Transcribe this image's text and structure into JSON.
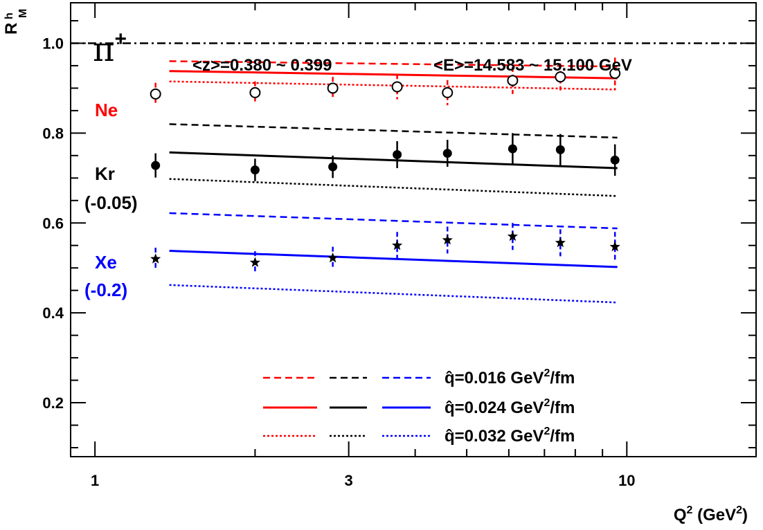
{
  "chart_data": {
    "type": "scatter",
    "x_scale": "log",
    "xlim": [
      0.9,
      17.5
    ],
    "ylim": [
      0.08,
      1.09
    ],
    "x_ticks": [
      1,
      3,
      10
    ],
    "x_tick_labels": [
      "1",
      "3",
      "10"
    ],
    "y_ticks": [
      0.2,
      0.4,
      0.6,
      0.8,
      1.0
    ],
    "y_tick_labels": [
      "0.2",
      "0.4",
      "0.6",
      "0.8",
      "1.0"
    ],
    "ylabel": {
      "main": "R",
      "sup": "h",
      "sub": "M"
    },
    "xlabel": {
      "pre": "Q",
      "sup1": "2",
      "mid": " (GeV",
      "sup2": "2",
      "post": ")"
    },
    "particle": {
      "base": "π",
      "sup": "+"
    },
    "header_z": "<z>=0.380 ~ 0.399",
    "header_e": "<E>=14.583 ~ 15.100 GeV",
    "reference_line": 1.0,
    "nuclei": [
      {
        "name": "Ne",
        "shift": "",
        "color": "#ff0000",
        "marker": "open-circle",
        "x": [
          1.3,
          2.0,
          2.8,
          3.7,
          4.6,
          6.1,
          7.5,
          9.5
        ],
        "y": [
          0.887,
          0.89,
          0.9,
          0.903,
          0.89,
          0.917,
          0.925,
          0.933
        ],
        "err": [
          0.025,
          0.025,
          0.025,
          0.028,
          0.028,
          0.03,
          0.03,
          0.035
        ],
        "err_style": "dashed"
      },
      {
        "name": "Kr",
        "shift": "(-0.05)",
        "color": "#000000",
        "marker": "filled-circle",
        "x": [
          1.3,
          2.0,
          2.8,
          3.7,
          4.6,
          6.1,
          7.5,
          9.5
        ],
        "y": [
          0.728,
          0.718,
          0.725,
          0.752,
          0.755,
          0.765,
          0.763,
          0.74
        ],
        "err": [
          0.027,
          0.025,
          0.025,
          0.03,
          0.03,
          0.035,
          0.035,
          0.035
        ],
        "err_style": "solid"
      },
      {
        "name": "Xe",
        "shift": "(-0.2)",
        "color": "#0000ff",
        "marker": "star",
        "x": [
          1.3,
          2.0,
          2.8,
          3.7,
          4.6,
          6.1,
          7.5,
          9.5
        ],
        "y": [
          0.52,
          0.512,
          0.522,
          0.55,
          0.562,
          0.57,
          0.556,
          0.547
        ],
        "err": [
          0.025,
          0.025,
          0.025,
          0.03,
          0.03,
          0.03,
          0.03,
          0.033
        ],
        "err_style": "dashed"
      }
    ],
    "curves": [
      {
        "nucleus": "Ne",
        "color": "#ff0000",
        "style": "dashed",
        "q": 0.016,
        "x": [
          1.38,
          9.6
        ],
        "y": [
          0.96,
          0.948
        ]
      },
      {
        "nucleus": "Ne",
        "color": "#ff0000",
        "style": "solid",
        "q": 0.024,
        "x": [
          1.38,
          9.6
        ],
        "y": [
          0.938,
          0.922
        ]
      },
      {
        "nucleus": "Ne",
        "color": "#ff0000",
        "style": "dotted",
        "q": 0.032,
        "x": [
          1.38,
          9.6
        ],
        "y": [
          0.915,
          0.897
        ]
      },
      {
        "nucleus": "Kr",
        "color": "#000000",
        "style": "dashed",
        "q": 0.016,
        "x": [
          1.38,
          9.6
        ],
        "y": [
          0.82,
          0.79
        ]
      },
      {
        "nucleus": "Kr",
        "color": "#000000",
        "style": "solid",
        "q": 0.024,
        "x": [
          1.38,
          9.6
        ],
        "y": [
          0.757,
          0.722
        ]
      },
      {
        "nucleus": "Kr",
        "color": "#000000",
        "style": "dotted",
        "q": 0.032,
        "x": [
          1.38,
          9.6
        ],
        "y": [
          0.698,
          0.66
        ]
      },
      {
        "nucleus": "Xe",
        "color": "#0000ff",
        "style": "dashed",
        "q": 0.016,
        "x": [
          1.38,
          9.6
        ],
        "y": [
          0.622,
          0.588
        ]
      },
      {
        "nucleus": "Xe",
        "color": "#0000ff",
        "style": "solid",
        "q": 0.024,
        "x": [
          1.38,
          9.6
        ],
        "y": [
          0.538,
          0.502
        ]
      },
      {
        "nucleus": "Xe",
        "color": "#0000ff",
        "style": "dotted",
        "q": 0.032,
        "x": [
          1.38,
          9.6
        ],
        "y": [
          0.462,
          0.423
        ]
      }
    ],
    "legend": [
      {
        "style": "dashed",
        "pre": "q̂=0.016 GeV",
        "sup": "2",
        "post": "/fm"
      },
      {
        "style": "solid",
        "pre": "q̂=0.024 GeV",
        "sup": "2",
        "post": "/fm"
      },
      {
        "style": "dotted",
        "pre": "q̂=0.032 GeV",
        "sup": "2",
        "post": "/fm"
      }
    ],
    "legend_colors": [
      "#ff0000",
      "#000000",
      "#0000ff"
    ],
    "legend_placement": "bottom-right",
    "grid": false
  }
}
